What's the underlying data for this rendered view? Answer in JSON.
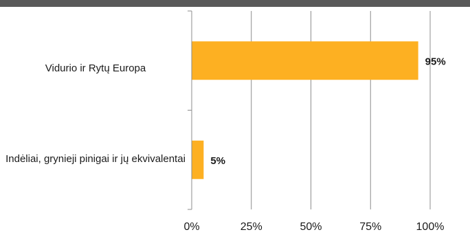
{
  "colors": {
    "bar": "#FDB022",
    "grid": "#8c8c8c",
    "text": "#1a1a1a",
    "top_band": "#595959"
  },
  "chart_data": {
    "type": "bar",
    "orientation": "horizontal",
    "title": "",
    "xlabel": "",
    "ylabel": "",
    "categories": [
      "Vidurio ir Rytų Europa",
      "Indėliai, grynieji pinigai ir jų ekvivalentai"
    ],
    "values": [
      95,
      5
    ],
    "data_labels": [
      "95%",
      "5%"
    ],
    "xlim": [
      0,
      100
    ],
    "x_ticks": [
      0,
      25,
      50,
      75,
      100
    ],
    "x_tick_labels": [
      "0%",
      "25%",
      "50%",
      "75%",
      "100%"
    ],
    "grid": true,
    "legend": "none"
  }
}
